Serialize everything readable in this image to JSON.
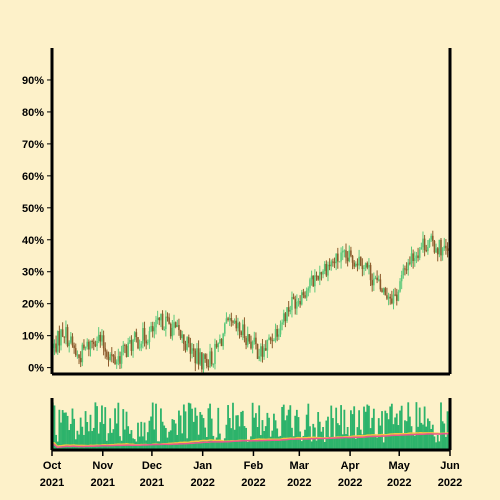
{
  "chart_data": {
    "type": "candlestick",
    "title": "",
    "xlabel": "",
    "ylabel": "",
    "ylim": [
      -2,
      100
    ],
    "yticks": [
      {
        "value": 0,
        "label": "0%"
      },
      {
        "value": 10,
        "label": "10%"
      },
      {
        "value": 20,
        "label": "20%"
      },
      {
        "value": 30,
        "label": "30%"
      },
      {
        "value": 40,
        "label": "40%"
      },
      {
        "value": 50,
        "label": "50%"
      },
      {
        "value": 60,
        "label": "60%"
      },
      {
        "value": 70,
        "label": "70%"
      },
      {
        "value": 80,
        "label": "80%"
      },
      {
        "value": 90,
        "label": "90%"
      }
    ],
    "xrange": [
      "2021-10-01",
      "2022-06-01"
    ],
    "xticks": [
      {
        "date": "2021-10-01",
        "line1": "Oct",
        "line2": "2021"
      },
      {
        "date": "2021-11-01",
        "line1": "Nov",
        "line2": "2021"
      },
      {
        "date": "2021-12-01",
        "line1": "Dec",
        "line2": "2021"
      },
      {
        "date": "2022-01-01",
        "line1": "Jan",
        "line2": "2022"
      },
      {
        "date": "2022-02-01",
        "line1": "Feb",
        "line2": "2022"
      },
      {
        "date": "2022-03-01",
        "line1": "Mar",
        "line2": "2022"
      },
      {
        "date": "2022-04-01",
        "line1": "Apr",
        "line2": "2022"
      },
      {
        "date": "2022-05-01",
        "line1": "May",
        "line2": "2022"
      },
      {
        "date": "2022-06-01",
        "line1": "Jun",
        "line2": "2022"
      }
    ],
    "grid": false,
    "up_color": "#5cc87a",
    "down_color": "#8b5a2b",
    "volume_color": "#2db36b",
    "volume_ma_colors": [
      "#f5c542",
      "#e8588e"
    ],
    "background": "#fdf1c9",
    "trend_points": [
      {
        "date": "2021-10-01",
        "value": 5
      },
      {
        "date": "2021-10-08",
        "value": 12
      },
      {
        "date": "2021-10-17",
        "value": 3
      },
      {
        "date": "2021-10-28",
        "value": 10
      },
      {
        "date": "2021-11-08",
        "value": 2
      },
      {
        "date": "2021-11-20",
        "value": 8
      },
      {
        "date": "2021-12-01",
        "value": 11
      },
      {
        "date": "2021-12-08",
        "value": 15
      },
      {
        "date": "2021-12-20",
        "value": 9
      },
      {
        "date": "2021-12-30",
        "value": 2
      },
      {
        "date": "2022-01-07",
        "value": 3
      },
      {
        "date": "2022-01-16",
        "value": 13
      },
      {
        "date": "2022-01-26",
        "value": 11
      },
      {
        "date": "2022-02-06",
        "value": 4
      },
      {
        "date": "2022-02-15",
        "value": 12
      },
      {
        "date": "2022-02-24",
        "value": 20
      },
      {
        "date": "2022-03-06",
        "value": 25
      },
      {
        "date": "2022-03-15",
        "value": 31
      },
      {
        "date": "2022-03-25",
        "value": 34
      },
      {
        "date": "2022-04-08",
        "value": 34
      },
      {
        "date": "2022-04-20",
        "value": 24
      },
      {
        "date": "2022-04-29",
        "value": 22
      },
      {
        "date": "2022-05-06",
        "value": 33
      },
      {
        "date": "2022-05-16",
        "value": 39
      },
      {
        "date": "2022-05-25",
        "value": 38
      },
      {
        "date": "2022-06-01",
        "value": 35
      }
    ]
  }
}
